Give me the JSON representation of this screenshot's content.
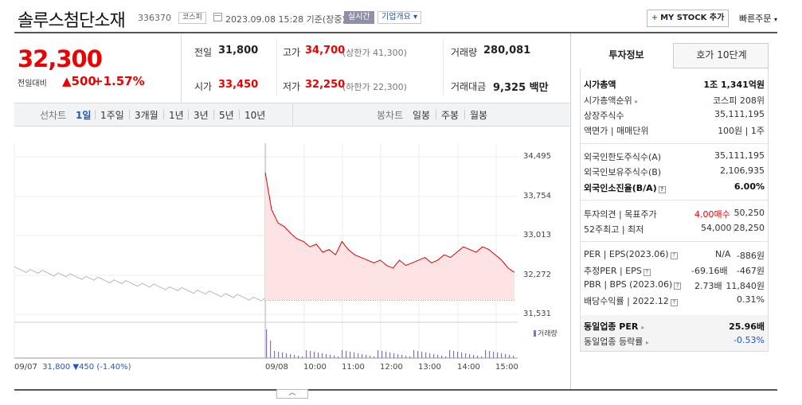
{
  "header": {
    "name": "솔루스첨단소재",
    "code": "336370",
    "market": "코스피",
    "datetime": "2023.09.08 15:28 기준(장중)",
    "realtime": "실시간",
    "company_overview": "기업개요",
    "mystock": "MY STOCK 추가",
    "quick_order": "빠른주문"
  },
  "price": {
    "current": "32,300",
    "diff_label": "전일대비",
    "diff": "500",
    "pct": "+1.57%"
  },
  "quote": {
    "prev_label": "전일",
    "prev": "31,800",
    "high_label": "고가",
    "high": "34,700",
    "high_note": "(상한가 41,300)",
    "vol_label": "거래량",
    "vol": "280,081",
    "open_label": "시가",
    "open": "33,450",
    "low_label": "저가",
    "low": "32,250",
    "low_note": "(하한가 22,300)",
    "amt_label": "거래대금",
    "amt": "9,325 백만"
  },
  "chart_tabs": {
    "line_label": "선차트",
    "periods": [
      "1일",
      "1주일",
      "3개월",
      "1년",
      "3년",
      "5년",
      "10년"
    ],
    "candle_label": "봉차트",
    "candles": [
      "일봉",
      "주봉",
      "월봉"
    ]
  },
  "chart_data": {
    "type": "line",
    "y_ticks": [
      "34,495",
      "33,754",
      "33,013",
      "32,272",
      "31,531"
    ],
    "ylim": [
      31531,
      34495
    ],
    "x_ticks": [
      "09/08",
      "10:00",
      "11:00",
      "12:00",
      "13:00",
      "14:00",
      "15:00"
    ],
    "prev_day": {
      "date": "09/07",
      "close": "31,800",
      "change": "▼450",
      "pct": "(-1.40%)"
    },
    "prev_close": 31800,
    "volume_legend": "거래량",
    "series": [
      {
        "values": [
          34200,
          33500,
          33250,
          33180,
          33050,
          32950,
          32900,
          32800,
          32850,
          32700,
          32750,
          32650,
          32900,
          32750,
          32650,
          32600,
          32550,
          32500,
          32550,
          32450,
          32400,
          32550,
          32450,
          32500,
          32550,
          32600,
          32500,
          32550,
          32650,
          32600,
          32700,
          32800,
          32750,
          32700,
          32800,
          32750,
          32650,
          32550,
          32400,
          32320
        ]
      }
    ]
  },
  "right_panel": {
    "tabs": [
      "투자정보",
      "호가 10단계"
    ],
    "rows1": [
      {
        "label": "시가총액",
        "value": "1조 1,341억원"
      },
      {
        "label": "시가총액순위",
        "value": "코스피 208위"
      },
      {
        "label": "상장주식수",
        "value": "35,111,195"
      },
      {
        "label": "액면가 | 매매단위",
        "value": "100원 | 1주"
      }
    ],
    "rows2": [
      {
        "label": "외국인한도주식수(A)",
        "value": "35,111,195"
      },
      {
        "label": "외국인보유주식수(B)",
        "value": "2,106,935"
      },
      {
        "label": "외국인소진율(B/A)",
        "value": "6.00%"
      }
    ],
    "opinion": {
      "label": "투자의견 | 목표주가",
      "opinion": "4.00매수",
      "target": "50,250"
    },
    "range52": {
      "label": "52주최고 | 최저",
      "high": "54,000",
      "low": "28,250"
    },
    "per": {
      "label": "PER | EPS(2023.06)",
      "a": "N/A",
      "b": "-886원"
    },
    "est_per": {
      "label": "추정PER | EPS",
      "a": "-69.16배",
      "b": "-467원"
    },
    "pbr": {
      "label": "PBR | BPS (2023.06)",
      "a": "2.73배",
      "b": "11,840원"
    },
    "dividend": {
      "label": "배당수익률 | 2022.12",
      "value": "0.31%"
    },
    "industry_per": {
      "label": "동일업종 PER",
      "value": "25.96배"
    },
    "industry_rate": {
      "label": "동일업종 등락률",
      "value": "-0.53%"
    }
  },
  "colors": {
    "up": "#e00000",
    "down": "#1f56c8",
    "area": "#fde3e4"
  }
}
